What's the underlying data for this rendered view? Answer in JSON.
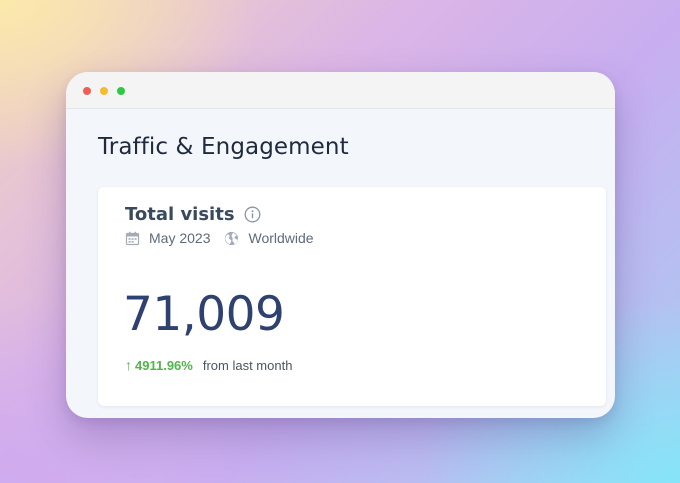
{
  "window": {
    "controls": [
      "close",
      "minimize",
      "maximize"
    ]
  },
  "section": {
    "title": "Traffic & Engagement"
  },
  "card": {
    "title": "Total visits",
    "info_icon": "info-icon",
    "period_icon": "calendar-icon",
    "period": "May 2023",
    "region_icon": "globe-icon",
    "region": "Worldwide",
    "value": "71,009",
    "change": {
      "arrow": "↑",
      "percent": "4911.96%",
      "label": "from last month",
      "direction": "up",
      "color": "#4fb648"
    }
  },
  "colors": {
    "value": "#2e4170",
    "title": "#1f2a3c"
  }
}
